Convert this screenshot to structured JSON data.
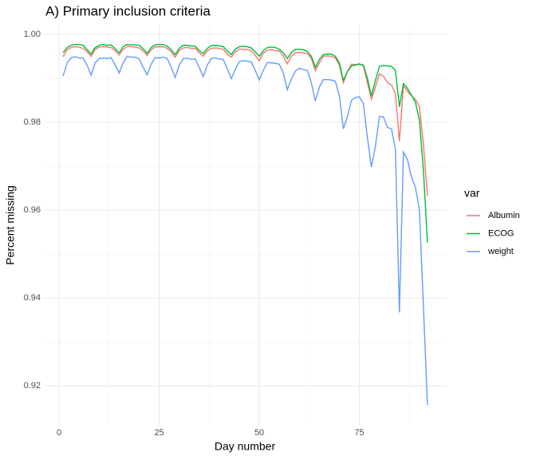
{
  "chart_data": {
    "type": "line",
    "title": "A) Primary inclusion criteria",
    "xlabel": "Day number",
    "ylabel": "Percent missing",
    "legend_title": "var",
    "legend_position": "right",
    "grid": true,
    "x": [
      1,
      2,
      3,
      4,
      5,
      6,
      7,
      8,
      9,
      10,
      11,
      12,
      13,
      14,
      15,
      16,
      17,
      18,
      19,
      20,
      21,
      22,
      23,
      24,
      25,
      26,
      27,
      28,
      29,
      30,
      31,
      32,
      33,
      34,
      35,
      36,
      37,
      38,
      39,
      40,
      41,
      42,
      43,
      44,
      45,
      46,
      47,
      48,
      49,
      50,
      51,
      52,
      53,
      54,
      55,
      56,
      57,
      58,
      59,
      60,
      61,
      62,
      63,
      64,
      65,
      66,
      67,
      68,
      69,
      70,
      71,
      72,
      73,
      74,
      75,
      76,
      77,
      78,
      79,
      80,
      81,
      82,
      83,
      84,
      85,
      86,
      87,
      88,
      89,
      90,
      91,
      92
    ],
    "xlim": [
      -3.8,
      96.8
    ],
    "xticks": [
      0,
      25,
      50,
      75
    ],
    "ylim": [
      0.9111,
      1.002
    ],
    "yticks": [
      {
        "value": 0.92,
        "label": "0.92"
      },
      {
        "value": 0.94,
        "label": "0.94"
      },
      {
        "value": 0.96,
        "label": "0.96"
      },
      {
        "value": 0.98,
        "label": "0.98"
      },
      {
        "value": 1.0,
        "label": "1.00"
      }
    ],
    "series": [
      {
        "name": "Albumin",
        "color": "#f8766d",
        "values": [
          0.9949,
          0.9965,
          0.997,
          0.9972,
          0.9971,
          0.9968,
          0.996,
          0.995,
          0.9966,
          0.9971,
          0.9972,
          0.9971,
          0.997,
          0.9962,
          0.9953,
          0.9966,
          0.9972,
          0.9972,
          0.9971,
          0.9969,
          0.9962,
          0.9952,
          0.9965,
          0.9971,
          0.9972,
          0.9972,
          0.9968,
          0.996,
          0.9948,
          0.9963,
          0.9969,
          0.997,
          0.9968,
          0.9968,
          0.9958,
          0.995,
          0.9962,
          0.9968,
          0.9969,
          0.9968,
          0.9966,
          0.9955,
          0.9948,
          0.996,
          0.9966,
          0.9966,
          0.9965,
          0.9963,
          0.9952,
          0.994,
          0.9957,
          0.9964,
          0.9965,
          0.9963,
          0.9962,
          0.995,
          0.9933,
          0.995,
          0.9958,
          0.9959,
          0.9958,
          0.9956,
          0.9945,
          0.9918,
          0.9935,
          0.995,
          0.9951,
          0.995,
          0.9946,
          0.993,
          0.989,
          0.9915,
          0.9932,
          0.9931,
          0.9933,
          0.9928,
          0.989,
          0.9852,
          0.988,
          0.991,
          0.9905,
          0.989,
          0.9885,
          0.9865,
          0.9757,
          0.9883,
          0.987,
          0.986,
          0.9852,
          0.9835,
          0.975,
          0.9632
        ]
      },
      {
        "name": "ECOG",
        "color": "#00ba38",
        "values": [
          0.9958,
          0.997,
          0.9975,
          0.9977,
          0.9977,
          0.9975,
          0.9965,
          0.9955,
          0.997,
          0.9975,
          0.9977,
          0.9975,
          0.9976,
          0.9967,
          0.9958,
          0.9972,
          0.9977,
          0.9976,
          0.9976,
          0.9975,
          0.9967,
          0.9957,
          0.997,
          0.9976,
          0.9977,
          0.9977,
          0.9973,
          0.9965,
          0.9954,
          0.9968,
          0.9975,
          0.9975,
          0.9973,
          0.9973,
          0.9963,
          0.9956,
          0.9968,
          0.9974,
          0.9975,
          0.9974,
          0.9972,
          0.9962,
          0.9954,
          0.9966,
          0.9972,
          0.9973,
          0.9972,
          0.9969,
          0.996,
          0.995,
          0.9963,
          0.997,
          0.9971,
          0.997,
          0.9966,
          0.9958,
          0.9945,
          0.9958,
          0.9966,
          0.9966,
          0.9965,
          0.9961,
          0.995,
          0.9925,
          0.9943,
          0.9954,
          0.9955,
          0.9955,
          0.995,
          0.9935,
          0.9895,
          0.9915,
          0.9928,
          0.993,
          0.9932,
          0.993,
          0.99,
          0.986,
          0.9895,
          0.9927,
          0.9929,
          0.9928,
          0.9927,
          0.9918,
          0.9835,
          0.9888,
          0.9877,
          0.9862,
          0.9845,
          0.9805,
          0.969,
          0.9526
        ]
      },
      {
        "name": "weight",
        "color": "#619cff",
        "values": [
          0.9905,
          0.9935,
          0.9947,
          0.9949,
          0.9946,
          0.9946,
          0.993,
          0.9907,
          0.9935,
          0.9945,
          0.9946,
          0.9945,
          0.9947,
          0.993,
          0.9912,
          0.9935,
          0.995,
          0.9948,
          0.9948,
          0.9944,
          0.9925,
          0.9908,
          0.9932,
          0.9947,
          0.9946,
          0.9948,
          0.9945,
          0.9925,
          0.9902,
          0.993,
          0.9945,
          0.9946,
          0.9943,
          0.9944,
          0.9925,
          0.9904,
          0.993,
          0.9945,
          0.9946,
          0.9944,
          0.9943,
          0.9922,
          0.9899,
          0.992,
          0.9938,
          0.994,
          0.9939,
          0.9937,
          0.9918,
          0.9896,
          0.9918,
          0.9936,
          0.9935,
          0.9934,
          0.9932,
          0.9912,
          0.9874,
          0.9898,
          0.9916,
          0.9923,
          0.992,
          0.9918,
          0.989,
          0.9848,
          0.988,
          0.9897,
          0.9897,
          0.9896,
          0.9893,
          0.986,
          0.9785,
          0.9812,
          0.985,
          0.9856,
          0.9858,
          0.9842,
          0.9765,
          0.9698,
          0.9745,
          0.9813,
          0.9812,
          0.9788,
          0.9785,
          0.9738,
          0.9367,
          0.9732,
          0.9715,
          0.9675,
          0.9652,
          0.96,
          0.938,
          0.9156
        ]
      }
    ]
  }
}
